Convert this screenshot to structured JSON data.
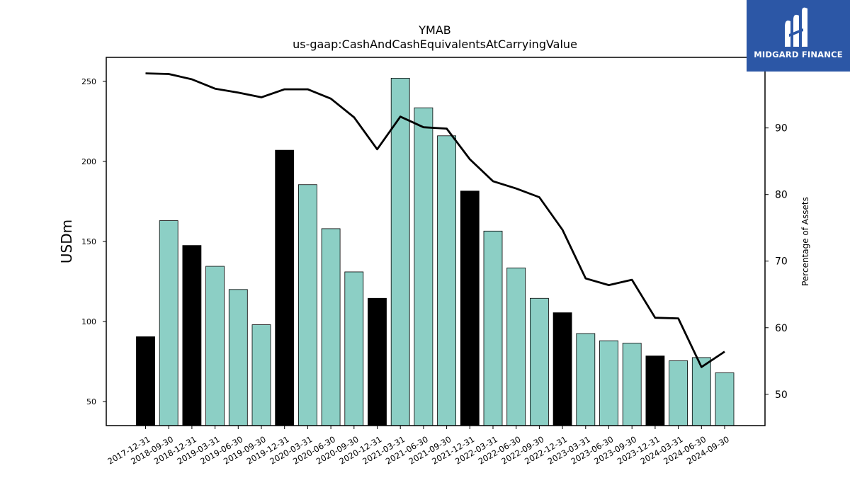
{
  "logo": {
    "text": "MIDGARD FINANCE",
    "background": "#2c57a6"
  },
  "chart_data": {
    "type": "bar",
    "title": "YMAB",
    "subtitle": "us-gaap:CashAndCashEquivalentsAtCarryingValue",
    "ylabel": "USDm",
    "y2label": "Percentage of Assets",
    "ylim": [
      35,
      265
    ],
    "y2lim": [
      45.3,
      100.6
    ],
    "yticks": [
      50,
      100,
      150,
      200,
      250
    ],
    "y2ticks": [
      50,
      60,
      70,
      80,
      90
    ],
    "categories": [
      "2017-12-31",
      "2018-09-30",
      "2018-12-31",
      "2019-03-31",
      "2019-06-30",
      "2019-09-30",
      "2019-12-31",
      "2020-03-31",
      "2020-06-30",
      "2020-09-30",
      "2020-12-31",
      "2021-03-31",
      "2021-06-30",
      "2021-09-30",
      "2021-12-31",
      "2022-03-31",
      "2022-06-30",
      "2022-09-30",
      "2022-12-31",
      "2023-03-31",
      "2023-06-30",
      "2023-09-30",
      "2023-12-31",
      "2024-03-31",
      "2024-06-30",
      "2024-09-30"
    ],
    "series": [
      {
        "values": [
          90.5,
          163,
          147.5,
          134.5,
          120,
          98,
          207,
          185.5,
          158,
          131,
          114.5,
          252,
          233.5,
          216,
          181.5,
          156.5,
          133.5,
          114.5,
          105.5,
          92.5,
          88,
          86.5,
          78.5,
          75.5,
          77.5,
          68
        ]
      },
      {
        "name": "Percentage of Assets",
        "axis": "right",
        "type": "line",
        "values": [
          98.2,
          98.1,
          97.3,
          95.9,
          95.3,
          94.6,
          95.8,
          95.8,
          94.4,
          91.6,
          86.8,
          91.7,
          90.1,
          89.9,
          85.3,
          82.0,
          80.9,
          79.6,
          74.7,
          67.4,
          66.4,
          67.2,
          61.5,
          61.4,
          54.1,
          56.4
        ]
      }
    ],
    "colors": {
      "bar_year_end": "#000000",
      "bar_quarter": "#8ccfc5",
      "line": "#000000"
    }
  }
}
